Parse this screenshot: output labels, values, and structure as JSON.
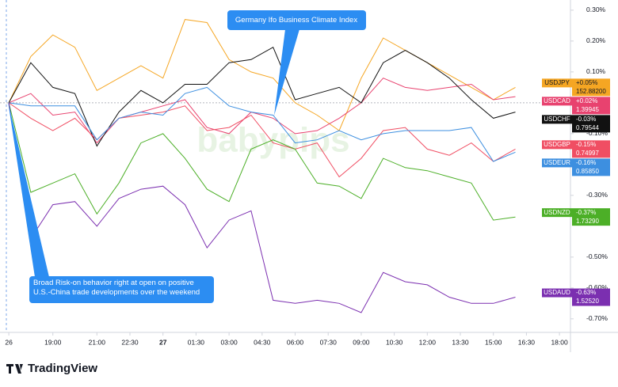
{
  "chart_data": {
    "type": "line",
    "annotations": [
      "Germany Ifo Business Climate Index",
      "Broad Risk-on behavior right at open on positive U.S.-China trade developments over the weekend"
    ],
    "watermark": "babypips",
    "brand": "TradingView",
    "x": [
      0,
      1,
      2,
      3,
      4,
      5,
      6,
      7,
      8,
      9,
      10,
      11,
      12,
      13,
      14,
      15,
      16,
      17,
      18,
      19,
      20,
      21,
      22,
      23
    ],
    "xlim": [
      -0.4,
      25.5
    ],
    "xticks": [
      {
        "value": 0,
        "label": "26"
      },
      {
        "value": 2,
        "label": "19:00"
      },
      {
        "value": 4,
        "label": "21:00"
      },
      {
        "value": 5.5,
        "label": "22:30"
      },
      {
        "value": 7,
        "label": "27"
      },
      {
        "value": 8.5,
        "label": "01:30"
      },
      {
        "value": 10,
        "label": "03:00"
      },
      {
        "value": 11.5,
        "label": "04:30"
      },
      {
        "value": 13,
        "label": "06:00"
      },
      {
        "value": 14.5,
        "label": "07:30"
      },
      {
        "value": 16,
        "label": "09:00"
      },
      {
        "value": 17.5,
        "label": "10:30"
      },
      {
        "value": 19,
        "label": "12:00"
      },
      {
        "value": 20.5,
        "label": "13:30"
      },
      {
        "value": 22,
        "label": "15:00"
      },
      {
        "value": 23.5,
        "label": "16:30"
      },
      {
        "value": 25,
        "label": "18:00"
      }
    ],
    "ylim": [
      -0.744,
      0.333
    ],
    "yticks": [
      {
        "value": 0.3,
        "label": "0.30%"
      },
      {
        "value": 0.2,
        "label": "0.20%"
      },
      {
        "value": 0.1,
        "label": "0.10%"
      },
      {
        "value": -0.1,
        "label": "-0.10%"
      },
      {
        "value": -0.2,
        "label": "-0.20%"
      },
      {
        "value": -0.3,
        "label": "-0.30%"
      },
      {
        "value": -0.5,
        "label": "-0.50%"
      },
      {
        "value": -0.6,
        "label": "-0.60%"
      },
      {
        "value": -0.7,
        "label": "-0.70%"
      }
    ],
    "series": [
      {
        "name": "USDJPY",
        "color": "#f5a623",
        "last_label": "+0.05%",
        "price_label": "152.88200",
        "values": [
          0,
          0.15,
          0.22,
          0.18,
          0.04,
          0.08,
          0.12,
          0.08,
          0.27,
          0.26,
          0.14,
          0.1,
          0.08,
          0.0,
          -0.04,
          -0.09,
          0.08,
          0.21,
          0.17,
          0.13,
          0.09,
          0.05,
          0.01,
          0.05
        ]
      },
      {
        "name": "USDCAD",
        "color": "#e8426f",
        "last_label": "+0.02%",
        "price_label": "1.39945",
        "values": [
          0,
          0.03,
          -0.04,
          -0.03,
          -0.13,
          -0.05,
          -0.03,
          -0.01,
          0.01,
          -0.08,
          -0.1,
          -0.03,
          -0.05,
          -0.1,
          -0.09,
          -0.05,
          0.0,
          0.08,
          0.05,
          0.04,
          0.05,
          0.06,
          0.01,
          0.02
        ]
      },
      {
        "name": "USDCHF",
        "color": "#111111",
        "last_label": "-0.03%",
        "price_label": "0.79544",
        "values": [
          0,
          0.13,
          0.05,
          0.03,
          -0.14,
          -0.03,
          0.04,
          0.0,
          0.06,
          0.06,
          0.13,
          0.14,
          0.18,
          0.01,
          0.03,
          0.05,
          0.0,
          0.13,
          0.17,
          0.13,
          0.08,
          0.01,
          -0.05,
          -0.03
        ]
      },
      {
        "name": "USDGBP",
        "color": "#f04e63",
        "last_label": "-0.15%",
        "price_label": "0.74997",
        "values": [
          0,
          -0.05,
          -0.09,
          -0.05,
          -0.12,
          -0.05,
          -0.04,
          -0.03,
          -0.01,
          -0.09,
          -0.08,
          -0.04,
          -0.13,
          -0.15,
          -0.13,
          -0.24,
          -0.18,
          -0.09,
          -0.08,
          -0.15,
          -0.17,
          -0.13,
          -0.19,
          -0.15
        ]
      },
      {
        "name": "USDEUR",
        "color": "#3d8fe0",
        "last_label": "-0.16%",
        "price_label": "0.85850",
        "values": [
          0,
          -0.01,
          -0.01,
          -0.01,
          -0.12,
          -0.05,
          -0.03,
          -0.04,
          0.03,
          0.05,
          -0.01,
          -0.03,
          -0.04,
          -0.13,
          -0.12,
          -0.09,
          -0.12,
          -0.1,
          -0.09,
          -0.09,
          -0.09,
          -0.08,
          -0.19,
          -0.16
        ]
      },
      {
        "name": "USDNZD",
        "color": "#4caf27",
        "last_label": "-0.37%",
        "price_label": "1.73290",
        "values": [
          0,
          -0.29,
          -0.26,
          -0.23,
          -0.36,
          -0.26,
          -0.13,
          -0.1,
          -0.18,
          -0.28,
          -0.32,
          -0.15,
          -0.12,
          -0.15,
          -0.26,
          -0.27,
          -0.31,
          -0.18,
          -0.21,
          -0.22,
          -0.24,
          -0.26,
          -0.38,
          -0.37
        ]
      },
      {
        "name": "USDAUD",
        "color": "#7b2fb0",
        "last_label": "-0.63%",
        "price_label": "1.52520",
        "values": [
          0,
          -0.44,
          -0.33,
          -0.32,
          -0.4,
          -0.31,
          -0.28,
          -0.27,
          -0.33,
          -0.47,
          -0.38,
          -0.35,
          -0.64,
          -0.65,
          -0.64,
          -0.65,
          -0.68,
          -0.55,
          -0.58,
          -0.59,
          -0.63,
          -0.65,
          -0.65,
          -0.63
        ]
      }
    ]
  }
}
